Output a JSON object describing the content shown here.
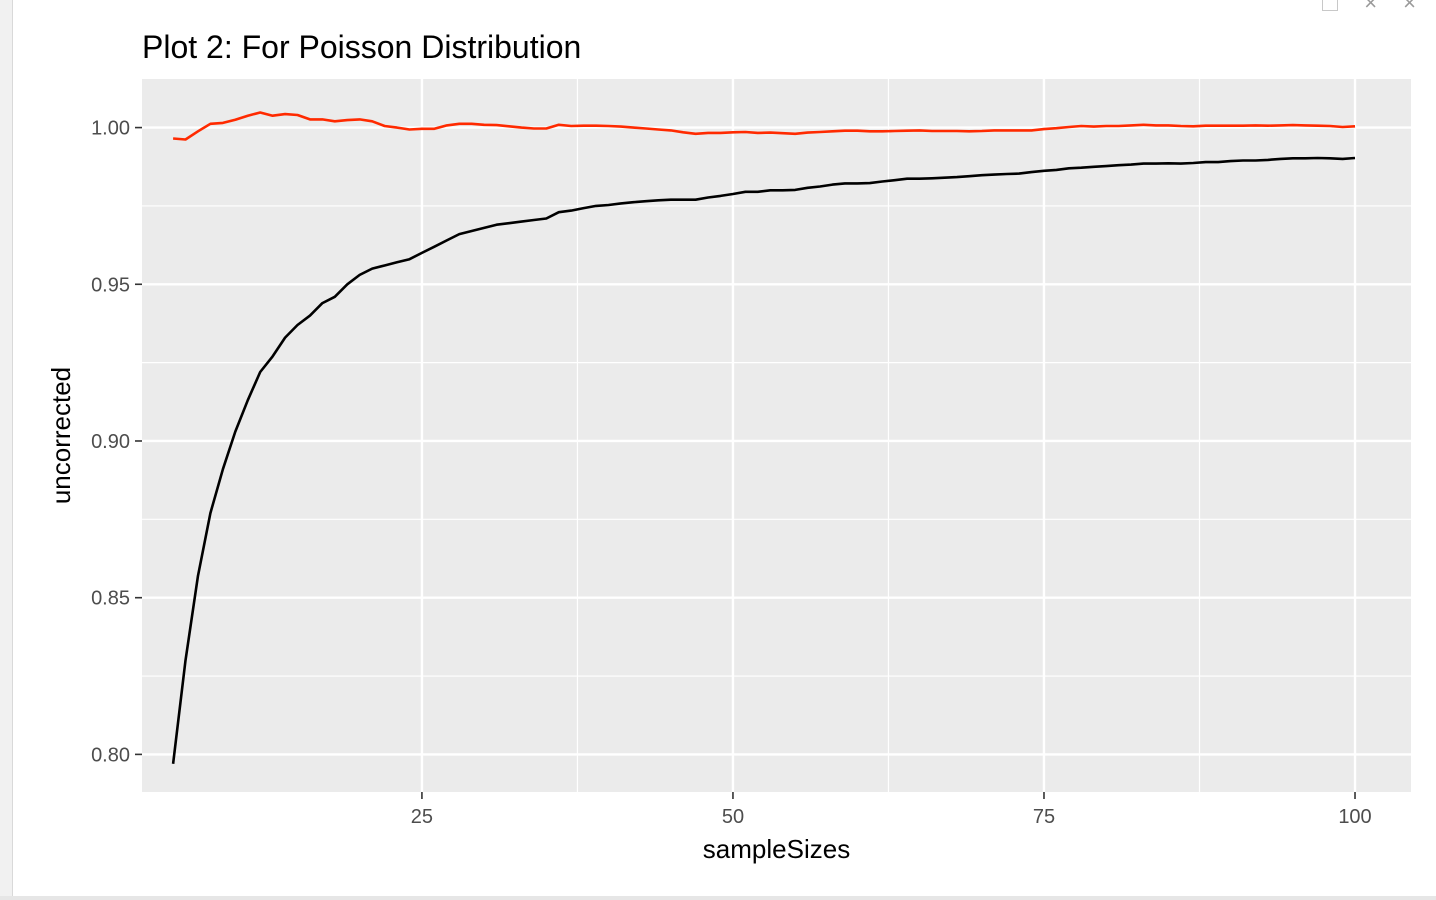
{
  "window": {
    "controls": [
      "restore-icon",
      "minimize-icon",
      "close-icon"
    ]
  },
  "chart_data": {
    "type": "line",
    "title": "Plot 2: For Poisson Distribution",
    "xlabel": "sampleSizes",
    "ylabel": "uncorrected",
    "xlim": [
      2.5,
      104.5
    ],
    "ylim": [
      0.788,
      1.0155
    ],
    "x_ticks": [
      25,
      50,
      75,
      100
    ],
    "x_tick_labels": [
      "25",
      "50",
      "75",
      "100"
    ],
    "y_ticks": [
      0.8,
      0.85,
      0.9,
      0.95,
      1.0
    ],
    "y_tick_labels": [
      "0.80",
      "0.85",
      "0.90",
      "0.95",
      "1.00"
    ],
    "grid": true,
    "panel_background": "#ebebeb",
    "grid_color": "#ffffff",
    "legend": "none",
    "series": [
      {
        "color": "#ff2a00",
        "x": [
          5,
          6,
          7,
          8,
          9,
          10,
          11,
          12,
          13,
          14,
          15,
          16,
          17,
          18,
          19,
          20,
          21,
          22,
          23,
          24,
          25,
          26,
          27,
          28,
          29,
          30,
          31,
          32,
          33,
          34,
          35,
          36,
          37,
          38,
          39,
          40,
          41,
          42,
          43,
          44,
          45,
          46,
          47,
          48,
          49,
          50,
          51,
          52,
          53,
          54,
          55,
          56,
          57,
          58,
          59,
          60,
          61,
          62,
          63,
          64,
          65,
          66,
          67,
          68,
          69,
          70,
          71,
          72,
          73,
          74,
          75,
          76,
          77,
          78,
          79,
          80,
          81,
          82,
          83,
          84,
          85,
          86,
          87,
          88,
          89,
          90,
          91,
          92,
          93,
          94,
          95,
          96,
          97,
          98,
          99,
          100
        ],
        "y": [
          0.9965,
          0.9962,
          0.9988,
          1.0012,
          1.0015,
          1.0025,
          1.0038,
          1.0048,
          1.0038,
          1.0043,
          1.004,
          1.0026,
          1.0026,
          1.002,
          1.0024,
          1.0026,
          1.002,
          1.0005,
          1.0,
          0.9994,
          0.9996,
          0.9996,
          1.0007,
          1.0012,
          1.0012,
          1.0009,
          1.0008,
          1.0004,
          1.0,
          0.9997,
          0.9997,
          1.0009,
          1.0005,
          1.0006,
          1.0006,
          1.0005,
          1.0003,
          1.0,
          0.9997,
          0.9994,
          0.9991,
          0.9985,
          0.998,
          0.9983,
          0.9983,
          0.9985,
          0.9986,
          0.9983,
          0.9984,
          0.9982,
          0.998,
          0.9984,
          0.9986,
          0.9988,
          0.999,
          0.999,
          0.9988,
          0.9988,
          0.9989,
          0.999,
          0.9991,
          0.9989,
          0.9989,
          0.9989,
          0.9988,
          0.9989,
          0.9991,
          0.9991,
          0.9991,
          0.9991,
          0.9995,
          0.9998,
          1.0002,
          1.0005,
          1.0003,
          1.0005,
          1.0005,
          1.0007,
          1.0009,
          1.0007,
          1.0007,
          1.0005,
          1.0004,
          1.0006,
          1.0006,
          1.0006,
          1.0006,
          1.0007,
          1.0006,
          1.0007,
          1.0008,
          1.0007,
          1.0006,
          1.0005,
          1.0002,
          1.0004
        ]
      },
      {
        "color": "#000000",
        "x": [
          5,
          6,
          7,
          8,
          9,
          10,
          11,
          12,
          13,
          14,
          15,
          16,
          17,
          18,
          19,
          20,
          21,
          22,
          23,
          24,
          25,
          26,
          27,
          28,
          29,
          30,
          31,
          32,
          33,
          34,
          35,
          36,
          37,
          38,
          39,
          40,
          41,
          42,
          43,
          44,
          45,
          46,
          47,
          48,
          49,
          50,
          51,
          52,
          53,
          54,
          55,
          56,
          57,
          58,
          59,
          60,
          61,
          62,
          63,
          64,
          65,
          66,
          67,
          68,
          69,
          70,
          71,
          72,
          73,
          74,
          75,
          76,
          77,
          78,
          79,
          80,
          81,
          82,
          83,
          84,
          85,
          86,
          87,
          88,
          89,
          90,
          91,
          92,
          93,
          94,
          95,
          96,
          97,
          98,
          99,
          100
        ],
        "y": [
          0.797,
          0.83,
          0.857,
          0.877,
          0.891,
          0.903,
          0.913,
          0.922,
          0.927,
          0.933,
          0.937,
          0.94,
          0.944,
          0.946,
          0.95,
          0.953,
          0.955,
          0.956,
          0.957,
          0.958,
          0.96,
          0.962,
          0.964,
          0.966,
          0.967,
          0.968,
          0.969,
          0.9695,
          0.97,
          0.9705,
          0.971,
          0.973,
          0.9735,
          0.9743,
          0.975,
          0.9753,
          0.9758,
          0.9762,
          0.9765,
          0.9768,
          0.977,
          0.977,
          0.977,
          0.9777,
          0.9782,
          0.9788,
          0.9795,
          0.9795,
          0.98,
          0.98,
          0.9801,
          0.9808,
          0.9812,
          0.9818,
          0.9822,
          0.9822,
          0.9823,
          0.9828,
          0.9832,
          0.9837,
          0.9837,
          0.9838,
          0.984,
          0.9842,
          0.9845,
          0.9848,
          0.985,
          0.9852,
          0.9853,
          0.9858,
          0.9862,
          0.9865,
          0.987,
          0.9872,
          0.9875,
          0.9877,
          0.988,
          0.9882,
          0.9885,
          0.9885,
          0.9886,
          0.9885,
          0.9887,
          0.989,
          0.989,
          0.9893,
          0.9895,
          0.9895,
          0.9897,
          0.99,
          0.9902,
          0.9902,
          0.9903,
          0.9902,
          0.99,
          0.9903
        ]
      }
    ]
  }
}
